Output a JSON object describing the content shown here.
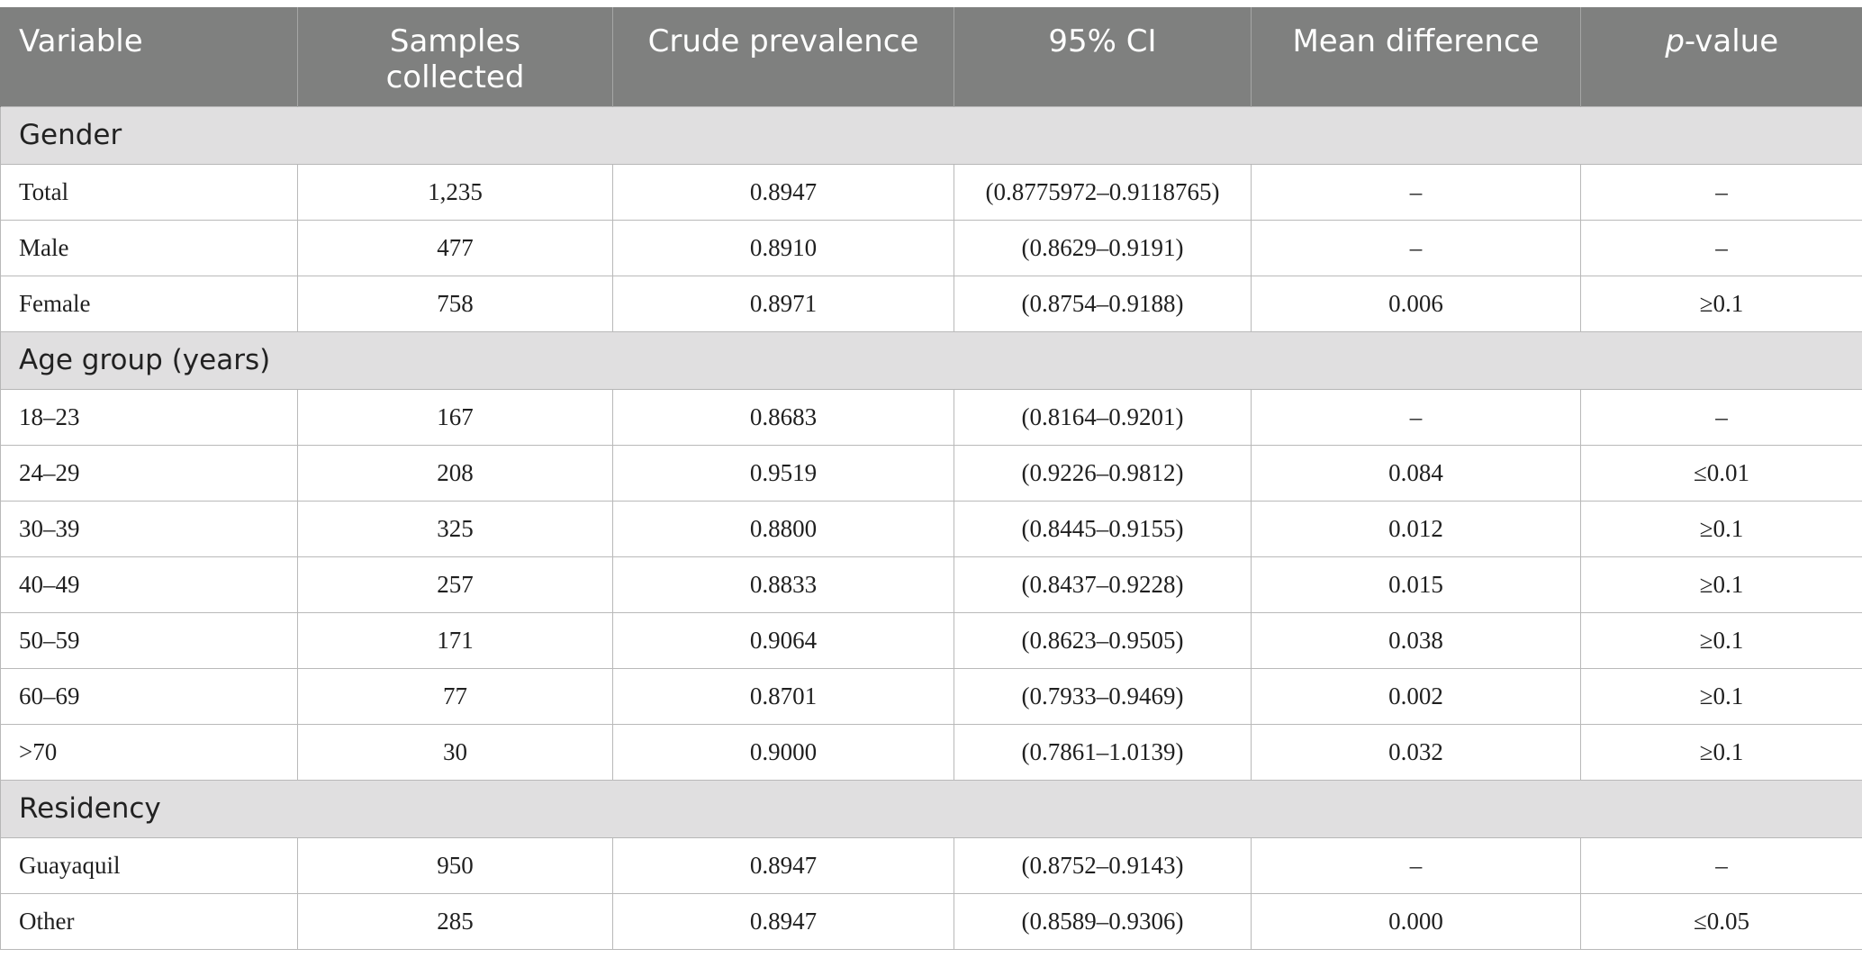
{
  "headers": {
    "variable": "Variable",
    "samples_line1": "Samples",
    "samples_line2": "collected",
    "crude": "Crude prevalence",
    "ci": "95% CI",
    "mean_diff": "Mean difference",
    "p_italic": "p",
    "p_rest": "-value"
  },
  "sections": [
    {
      "title": "Gender",
      "rows": [
        {
          "variable": "Total",
          "samples": "1,235",
          "crude": "0.8947",
          "ci": "(0.8775972–0.9118765)",
          "mean_diff": "–",
          "p": "–"
        },
        {
          "variable": "Male",
          "samples": "477",
          "crude": "0.8910",
          "ci": "(0.8629–0.9191)",
          "mean_diff": "–",
          "p": "–"
        },
        {
          "variable": "Female",
          "samples": "758",
          "crude": "0.8971",
          "ci": "(0.8754–0.9188)",
          "mean_diff": "0.006",
          "p": "≥0.1"
        }
      ]
    },
    {
      "title": "Age group (years)",
      "rows": [
        {
          "variable": "18–23",
          "samples": "167",
          "crude": "0.8683",
          "ci": "(0.8164–0.9201)",
          "mean_diff": "–",
          "p": "–"
        },
        {
          "variable": "24–29",
          "samples": "208",
          "crude": "0.9519",
          "ci": "(0.9226–0.9812)",
          "mean_diff": "0.084",
          "p": "≤0.01"
        },
        {
          "variable": "30–39",
          "samples": "325",
          "crude": "0.8800",
          "ci": "(0.8445–0.9155)",
          "mean_diff": "0.012",
          "p": "≥0.1"
        },
        {
          "variable": "40–49",
          "samples": "257",
          "crude": "0.8833",
          "ci": "(0.8437–0.9228)",
          "mean_diff": "0.015",
          "p": "≥0.1"
        },
        {
          "variable": "50–59",
          "samples": "171",
          "crude": "0.9064",
          "ci": "(0.8623–0.9505)",
          "mean_diff": "0.038",
          "p": "≥0.1"
        },
        {
          "variable": "60–69",
          "samples": "77",
          "crude": "0.8701",
          "ci": "(0.7933–0.9469)",
          "mean_diff": "0.002",
          "p": "≥0.1"
        },
        {
          "variable": ">70",
          "samples": "30",
          "crude": "0.9000",
          "ci": "(0.7861–1.0139)",
          "mean_diff": "0.032",
          "p": "≥0.1"
        }
      ]
    },
    {
      "title": "Residency",
      "rows": [
        {
          "variable": "Guayaquil",
          "samples": "950",
          "crude": "0.8947",
          "ci": "(0.8752–0.9143)",
          "mean_diff": "–",
          "p": "–"
        },
        {
          "variable": "Other",
          "samples": "285",
          "crude": "0.8947",
          "ci": "(0.8589–0.9306)",
          "mean_diff": "0.000",
          "p": "≤0.05"
        }
      ]
    }
  ]
}
